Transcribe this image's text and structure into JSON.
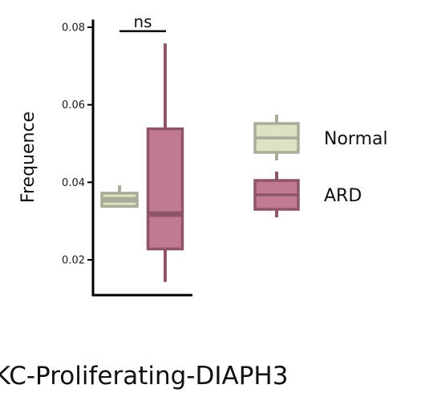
{
  "chart_data": {
    "type": "box",
    "xlabel": "KC-Proliferating-DIAPH3",
    "ylabel": "Frequence",
    "ylim": [
      0.011,
      0.082
    ],
    "yticks": [
      0.02,
      0.04,
      0.06,
      0.08
    ],
    "ytick_labels": [
      "0.02",
      "0.04",
      "0.06",
      "0.08"
    ],
    "legend_position": "right",
    "series": [
      {
        "name": "Normal",
        "fill": "#dbe3c3",
        "stroke": "#a7ad98",
        "stats": {
          "whisker_low": 0.0338,
          "q1": 0.0338,
          "median": 0.0355,
          "q3": 0.0372,
          "whisker_high": 0.0392
        }
      },
      {
        "name": "ARD",
        "fill": "#c27a91",
        "stroke": "#8e5468",
        "stats": {
          "whisker_low": 0.0143,
          "q1": 0.0228,
          "median": 0.0318,
          "q3": 0.0538,
          "whisker_high": 0.0758
        }
      }
    ],
    "annotations": [
      {
        "type": "significance",
        "label": "ns",
        "between": [
          "Normal",
          "ARD"
        ],
        "y": 0.079
      }
    ]
  }
}
